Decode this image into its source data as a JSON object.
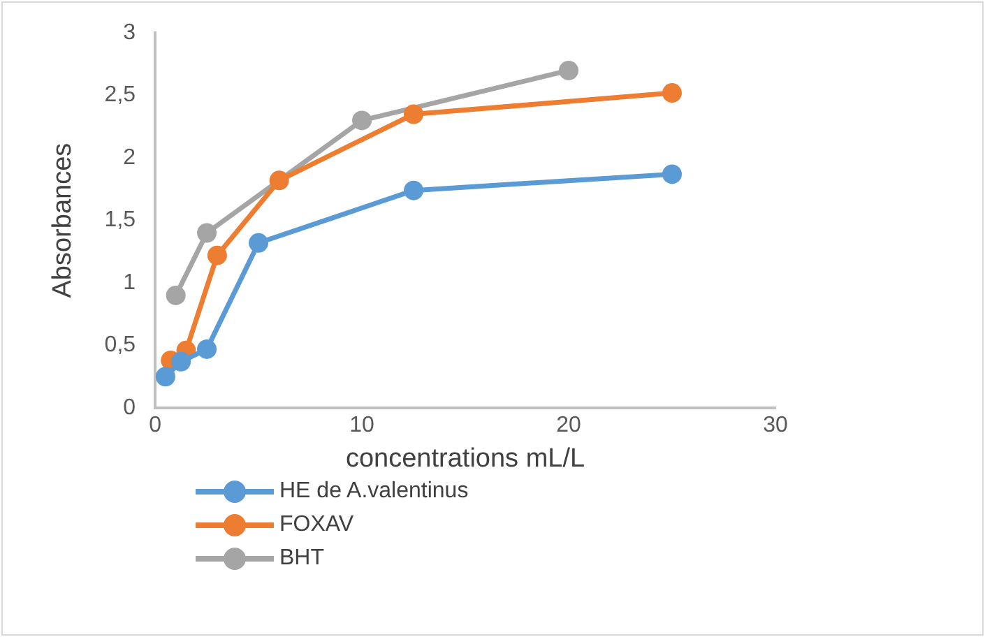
{
  "chart_data": {
    "type": "line",
    "xlabel": "concentrations mL/L",
    "ylabel": "Absorbances",
    "xlim": [
      0,
      30
    ],
    "xticks": [
      0,
      10,
      20,
      30
    ],
    "ylim": [
      0,
      3
    ],
    "yticks": [
      0,
      {
        "value": 0.5,
        "label": "0,5"
      },
      1,
      {
        "value": 1.5,
        "label": "1,5"
      },
      2,
      {
        "value": 2.5,
        "label": "2,5"
      },
      3
    ],
    "grid": false,
    "legend": "bottom",
    "marker": "circle",
    "line_style": "solid",
    "series": [
      {
        "name": "HE de A.valentinus",
        "color": "#5b9bd5",
        "x": [
          0.5,
          1.25,
          2.5,
          5,
          12.5,
          25
        ],
        "values": [
          0.25,
          0.37,
          0.47,
          1.32,
          1.74,
          1.87
        ]
      },
      {
        "name": "FOXAV",
        "color": "#ed7d31",
        "x": [
          0.75,
          1.5,
          3,
          6,
          12.5,
          25
        ],
        "values": [
          0.38,
          0.46,
          1.22,
          1.82,
          2.35,
          2.52
        ]
      },
      {
        "name": "BHT",
        "color": "#a5a5a5",
        "x": [
          1,
          2.5,
          10,
          20
        ],
        "values": [
          0.9,
          1.4,
          2.3,
          2.7
        ]
      }
    ]
  }
}
